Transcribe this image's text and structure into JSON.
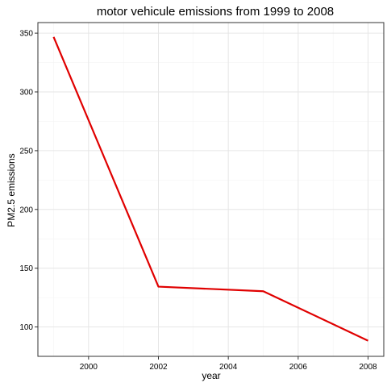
{
  "chart_data": {
    "type": "line",
    "title": "motor vehicule emissions from 1999 to 2008",
    "xlabel": "year",
    "ylabel": "PM2.5 emissions",
    "x": [
      1999,
      2002,
      2005,
      2008
    ],
    "series": [
      {
        "values": [
          346.8,
          134.3,
          130.4,
          88.3
        ],
        "color": "#e00000"
      }
    ],
    "xlim": [
      1998.55,
      2008.45
    ],
    "ylim": [
      75,
      359
    ],
    "xticks": [
      2000,
      2002,
      2004,
      2006,
      2008
    ],
    "xtick_labels": [
      "2000",
      "2002",
      "2004",
      "2006",
      "2008"
    ],
    "yticks": [
      100,
      150,
      200,
      250,
      300,
      350
    ],
    "ytick_labels": [
      "100",
      "150",
      "200",
      "250",
      "300",
      "350"
    ],
    "grid": true,
    "legend": "none"
  }
}
